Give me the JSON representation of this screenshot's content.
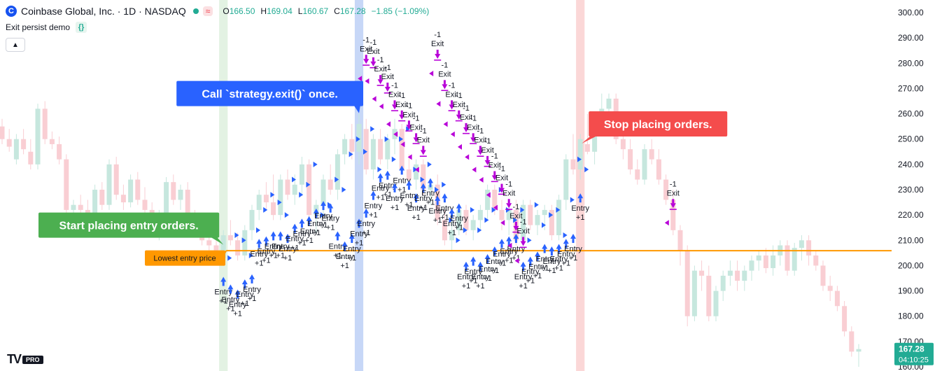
{
  "header": {
    "title": "Coinbase Global, Inc. · 1D · NASDAQ",
    "logo_letter": "C",
    "badge": "≈",
    "ohlc": [
      {
        "k": "O",
        "v": "166.50"
      },
      {
        "k": "H",
        "v": "169.04"
      },
      {
        "k": "L",
        "v": "160.67"
      },
      {
        "k": "C",
        "v": "167.28"
      }
    ],
    "change": "−1.85 (−1.09%)"
  },
  "indicator": {
    "name": "Exit persist demo",
    "icon": "{}"
  },
  "collapse_icon": "chevron-up-icon",
  "tv_logo": {
    "text": "TV",
    "pro": "PRO"
  },
  "chart_data": {
    "type": "candlestick",
    "ylim": [
      160,
      300
    ],
    "ticks": [
      "300.00",
      "290.00",
      "280.00",
      "270.00",
      "260.00",
      "250.00",
      "240.00",
      "230.00",
      "220.00",
      "210.00",
      "200.00",
      "190.00",
      "180.00",
      "170.00",
      "160.00"
    ],
    "price_label": {
      "value": "167.28",
      "countdown": "04:10:25"
    },
    "lowest_entry_price": 205.9,
    "lowest_entry_label": "Lowest entry price",
    "colors": {
      "up": "#c6e7de",
      "down": "#f9ced3",
      "line": "#ff9800",
      "entry": "#2962ff",
      "exit": "#b800d8",
      "green_band": "#e3f2e3",
      "blue_band": "#c7d7f7",
      "red_band": "#fbd7d7"
    },
    "bands": [
      {
        "color": "green",
        "index": 31
      },
      {
        "color": "blue",
        "index": 50
      },
      {
        "color": "red",
        "index": 81
      }
    ],
    "callouts": [
      {
        "text": "Start placing entry orders.",
        "color": "#4caf50",
        "at": 31,
        "price": 216
      },
      {
        "text": "Call `strategy.exit()` once.",
        "color": "#2962ff",
        "at": 50,
        "price": 268
      },
      {
        "text": "Stop placing orders.",
        "color": "#f44c4c",
        "at": 81,
        "price": 256
      }
    ],
    "entry_label": "Entry",
    "entry_qty": "+1",
    "exit_label": "Exit",
    "exit_qty": "-1",
    "candles": [
      [
        255,
        258,
        248,
        250
      ],
      [
        250,
        254,
        245,
        247
      ],
      [
        242,
        252,
        240,
        250
      ],
      [
        250,
        254,
        244,
        246
      ],
      [
        245,
        250,
        238,
        240
      ],
      [
        240,
        264,
        238,
        262
      ],
      [
        262,
        265,
        248,
        250
      ],
      [
        250,
        253,
        246,
        248
      ],
      [
        248,
        251,
        240,
        242
      ],
      [
        242,
        244,
        220,
        222
      ],
      [
        222,
        226,
        218,
        224
      ],
      [
        224,
        228,
        220,
        222
      ],
      [
        222,
        226,
        217,
        220
      ],
      [
        220,
        232,
        218,
        230
      ],
      [
        230,
        233,
        222,
        224
      ],
      [
        224,
        242,
        222,
        240
      ],
      [
        240,
        243,
        226,
        228
      ],
      [
        228,
        232,
        222,
        225
      ],
      [
        225,
        236,
        223,
        234
      ],
      [
        234,
        237,
        224,
        226
      ],
      [
        226,
        231,
        220,
        222
      ],
      [
        222,
        225,
        214,
        216
      ],
      [
        216,
        222,
        210,
        220
      ],
      [
        220,
        235,
        218,
        233
      ],
      [
        233,
        236,
        224,
        226
      ],
      [
        226,
        232,
        222,
        230
      ],
      [
        230,
        233,
        218,
        220
      ],
      [
        220,
        222,
        212,
        214
      ],
      [
        214,
        218,
        208,
        210
      ],
      [
        210,
        213,
        204,
        208
      ],
      [
        208,
        210,
        200,
        204
      ],
      [
        203,
        214,
        201,
        212
      ],
      [
        212,
        218,
        208,
        210
      ],
      [
        210,
        213,
        202,
        204
      ],
      [
        204,
        216,
        202,
        214
      ],
      [
        214,
        224,
        210,
        222
      ],
      [
        222,
        230,
        218,
        228
      ],
      [
        228,
        233,
        222,
        225
      ],
      [
        225,
        236,
        218,
        220
      ],
      [
        220,
        236,
        218,
        234
      ],
      [
        234,
        238,
        226,
        228
      ],
      [
        228,
        236,
        224,
        232
      ],
      [
        232,
        243,
        228,
        240
      ],
      [
        240,
        242,
        218,
        220
      ],
      [
        220,
        226,
        213,
        224
      ],
      [
        224,
        236,
        220,
        234
      ],
      [
        234,
        240,
        228,
        230
      ],
      [
        230,
        246,
        226,
        244
      ],
      [
        244,
        252,
        240,
        250
      ],
      [
        250,
        256,
        242,
        245
      ],
      [
        245,
        260,
        240,
        256
      ],
      [
        254,
        258,
        236,
        238
      ],
      [
        238,
        252,
        234,
        250
      ],
      [
        250,
        254,
        240,
        242
      ],
      [
        242,
        252,
        238,
        250
      ],
      [
        250,
        258,
        244,
        254
      ],
      [
        254,
        256,
        236,
        238
      ],
      [
        238,
        244,
        232,
        234
      ],
      [
        234,
        242,
        230,
        240
      ],
      [
        240,
        242,
        228,
        230
      ],
      [
        230,
        234,
        224,
        232
      ],
      [
        232,
        236,
        216,
        218
      ],
      [
        218,
        222,
        208,
        210
      ],
      [
        210,
        218,
        206,
        214
      ],
      [
        214,
        223,
        212,
        222
      ],
      [
        222,
        224,
        212,
        214
      ],
      [
        214,
        220,
        210,
        218
      ],
      [
        218,
        224,
        214,
        222
      ],
      [
        222,
        232,
        218,
        230
      ],
      [
        230,
        232,
        220,
        222
      ],
      [
        222,
        226,
        214,
        218
      ],
      [
        218,
        224,
        212,
        222
      ],
      [
        222,
        226,
        208,
        210
      ],
      [
        210,
        226,
        208,
        224
      ],
      [
        224,
        226,
        214,
        216
      ],
      [
        216,
        222,
        212,
        220
      ],
      [
        220,
        224,
        214,
        222
      ],
      [
        222,
        224,
        210,
        212
      ],
      [
        212,
        228,
        210,
        226
      ],
      [
        226,
        244,
        222,
        242
      ],
      [
        242,
        252,
        236,
        238
      ],
      [
        238,
        252,
        234,
        250
      ],
      [
        248,
        260,
        244,
        245
      ],
      [
        245,
        256,
        240,
        254
      ],
      [
        254,
        268,
        252,
        262
      ],
      [
        262,
        268,
        256,
        266
      ],
      [
        266,
        268,
        248,
        250
      ],
      [
        250,
        254,
        242,
        246
      ],
      [
        246,
        250,
        236,
        238
      ],
      [
        238,
        242,
        232,
        234
      ],
      [
        234,
        248,
        232,
        246
      ],
      [
        246,
        250,
        240,
        242
      ],
      [
        242,
        246,
        232,
        234
      ],
      [
        234,
        236,
        224,
        226
      ],
      [
        226,
        230,
        212,
        214
      ],
      [
        214,
        216,
        200,
        206
      ],
      [
        206,
        208,
        176,
        180
      ],
      [
        180,
        200,
        178,
        198
      ],
      [
        198,
        202,
        190,
        196
      ],
      [
        196,
        200,
        178,
        180
      ],
      [
        180,
        192,
        178,
        190
      ],
      [
        190,
        198,
        186,
        196
      ],
      [
        196,
        202,
        192,
        198
      ],
      [
        198,
        202,
        190,
        194
      ],
      [
        194,
        200,
        190,
        198
      ],
      [
        198,
        204,
        194,
        202
      ],
      [
        202,
        206,
        198,
        204
      ],
      [
        204,
        207,
        197,
        199
      ],
      [
        199,
        208,
        196,
        204
      ],
      [
        204,
        210,
        200,
        208
      ],
      [
        208,
        210,
        196,
        198
      ],
      [
        198,
        209,
        196,
        207
      ],
      [
        207,
        212,
        202,
        210
      ],
      [
        210,
        212,
        200,
        204
      ],
      [
        204,
        206,
        198,
        200
      ],
      [
        200,
        202,
        190,
        192
      ],
      [
        192,
        196,
        186,
        190
      ],
      [
        190,
        192,
        182,
        184
      ],
      [
        184,
        186,
        172,
        174
      ],
      [
        174,
        176,
        164,
        166
      ],
      [
        166,
        169,
        160,
        167
      ]
    ],
    "entries": [
      {
        "i": 31,
        "p": 195
      },
      {
        "i": 32,
        "p": 192
      },
      {
        "i": 33,
        "p": 190
      },
      {
        "i": 34,
        "p": 194
      },
      {
        "i": 35,
        "p": 196
      },
      {
        "i": 36,
        "p": 210
      },
      {
        "i": 37,
        "p": 211
      },
      {
        "i": 38,
        "p": 213
      },
      {
        "i": 39,
        "p": 213
      },
      {
        "i": 40,
        "p": 212
      },
      {
        "i": 41,
        "p": 216
      },
      {
        "i": 42,
        "p": 218
      },
      {
        "i": 43,
        "p": 219
      },
      {
        "i": 44,
        "p": 222
      },
      {
        "i": 45,
        "p": 225
      },
      {
        "i": 46,
        "p": 224
      },
      {
        "i": 47,
        "p": 213
      },
      {
        "i": 48,
        "p": 209
      },
      {
        "i": 49,
        "p": 212
      },
      {
        "i": 50,
        "p": 218
      },
      {
        "i": 51,
        "p": 222
      },
      {
        "i": 52,
        "p": 229
      },
      {
        "i": 53,
        "p": 236
      },
      {
        "i": 54,
        "p": 237
      },
      {
        "i": 55,
        "p": 232
      },
      {
        "i": 56,
        "p": 239
      },
      {
        "i": 57,
        "p": 233
      },
      {
        "i": 58,
        "p": 228
      },
      {
        "i": 59,
        "p": 232
      },
      {
        "i": 60,
        "p": 234
      },
      {
        "i": 61,
        "p": 227
      },
      {
        "i": 62,
        "p": 228
      },
      {
        "i": 63,
        "p": 222
      },
      {
        "i": 64,
        "p": 224
      },
      {
        "i": 65,
        "p": 201
      },
      {
        "i": 66,
        "p": 203
      },
      {
        "i": 67,
        "p": 201
      },
      {
        "i": 68,
        "p": 204
      },
      {
        "i": 69,
        "p": 207
      },
      {
        "i": 70,
        "p": 210
      },
      {
        "i": 71,
        "p": 211
      },
      {
        "i": 72,
        "p": 212
      },
      {
        "i": 73,
        "p": 201
      },
      {
        "i": 74,
        "p": 203
      },
      {
        "i": 75,
        "p": 205
      },
      {
        "i": 76,
        "p": 208
      },
      {
        "i": 77,
        "p": 207
      },
      {
        "i": 78,
        "p": 208
      },
      {
        "i": 79,
        "p": 210
      },
      {
        "i": 80,
        "p": 212
      },
      {
        "i": 81,
        "p": 228
      }
    ],
    "exits": [
      {
        "i": 51,
        "p": 280
      },
      {
        "i": 52,
        "p": 279
      },
      {
        "i": 53,
        "p": 272
      },
      {
        "i": 54,
        "p": 269
      },
      {
        "i": 55,
        "p": 262
      },
      {
        "i": 56,
        "p": 258
      },
      {
        "i": 57,
        "p": 254
      },
      {
        "i": 58,
        "p": 249
      },
      {
        "i": 59,
        "p": 244
      },
      {
        "i": 61,
        "p": 282
      },
      {
        "i": 62,
        "p": 270
      },
      {
        "i": 63,
        "p": 262
      },
      {
        "i": 64,
        "p": 258
      },
      {
        "i": 65,
        "p": 253
      },
      {
        "i": 66,
        "p": 249
      },
      {
        "i": 67,
        "p": 244
      },
      {
        "i": 68,
        "p": 240
      },
      {
        "i": 69,
        "p": 234
      },
      {
        "i": 70,
        "p": 229
      },
      {
        "i": 71,
        "p": 223
      },
      {
        "i": 72,
        "p": 214
      },
      {
        "i": 73,
        "p": 208
      },
      {
        "i": 94,
        "p": 223
      }
    ]
  }
}
